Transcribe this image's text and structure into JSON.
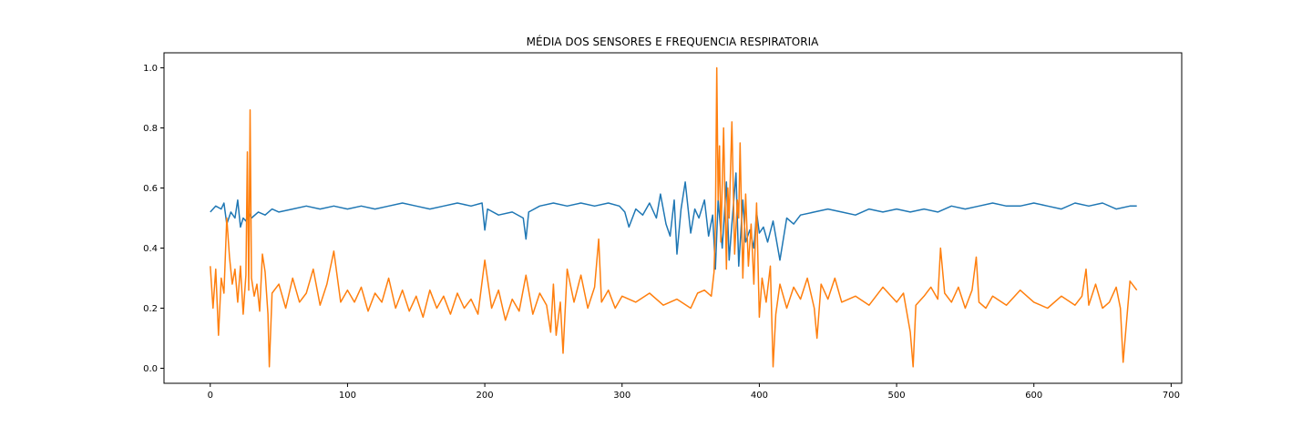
{
  "chart_data": {
    "type": "line",
    "title": "MÉDIA DOS SENSORES E FREQUENCIA RESPIRATORIA",
    "xlabel": "",
    "ylabel": "",
    "xlim": [
      -33.7,
      707.7
    ],
    "ylim": [
      -0.05,
      1.05
    ],
    "xticks": [
      0,
      100,
      200,
      300,
      400,
      500,
      600,
      700
    ],
    "yticks": [
      0.0,
      0.2,
      0.4,
      0.6,
      0.8,
      1.0
    ],
    "xtick_labels": [
      "0",
      "100",
      "200",
      "300",
      "400",
      "500",
      "600",
      "700"
    ],
    "ytick_labels": [
      "0.0",
      "0.2",
      "0.4",
      "0.6",
      "0.8",
      "1.0"
    ],
    "grid": false,
    "legend": "none",
    "series": [
      {
        "color": "#1f77b4",
        "x": [
          0,
          4,
          8,
          10,
          12,
          15,
          18,
          20,
          22,
          24,
          26,
          28,
          30,
          35,
          40,
          45,
          50,
          60,
          70,
          80,
          90,
          100,
          110,
          120,
          130,
          140,
          150,
          160,
          170,
          180,
          190,
          198,
          200,
          202,
          210,
          220,
          228,
          230,
          232,
          240,
          250,
          260,
          270,
          280,
          290,
          298,
          302,
          305,
          310,
          315,
          320,
          325,
          328,
          332,
          335,
          338,
          340,
          343,
          346,
          350,
          353,
          356,
          360,
          363,
          366,
          368,
          370,
          373,
          376,
          378,
          380,
          383,
          385,
          388,
          390,
          393,
          396,
          398,
          400,
          403,
          406,
          410,
          415,
          420,
          425,
          430,
          440,
          450,
          460,
          470,
          480,
          490,
          500,
          510,
          520,
          530,
          540,
          550,
          560,
          570,
          580,
          590,
          600,
          610,
          620,
          630,
          640,
          650,
          660,
          670,
          675
        ],
        "y": [
          0.52,
          0.54,
          0.53,
          0.55,
          0.48,
          0.52,
          0.5,
          0.56,
          0.47,
          0.5,
          0.49,
          0.52,
          0.5,
          0.52,
          0.51,
          0.53,
          0.52,
          0.53,
          0.54,
          0.53,
          0.54,
          0.53,
          0.54,
          0.53,
          0.54,
          0.55,
          0.54,
          0.53,
          0.54,
          0.55,
          0.54,
          0.55,
          0.46,
          0.53,
          0.51,
          0.52,
          0.5,
          0.43,
          0.52,
          0.54,
          0.55,
          0.54,
          0.55,
          0.54,
          0.55,
          0.54,
          0.52,
          0.47,
          0.53,
          0.51,
          0.55,
          0.5,
          0.58,
          0.48,
          0.44,
          0.56,
          0.38,
          0.53,
          0.62,
          0.45,
          0.53,
          0.5,
          0.56,
          0.44,
          0.51,
          0.33,
          0.56,
          0.4,
          0.62,
          0.36,
          0.48,
          0.65,
          0.34,
          0.56,
          0.42,
          0.46,
          0.4,
          0.52,
          0.45,
          0.47,
          0.42,
          0.49,
          0.36,
          0.5,
          0.48,
          0.51,
          0.52,
          0.53,
          0.52,
          0.51,
          0.53,
          0.52,
          0.53,
          0.52,
          0.53,
          0.52,
          0.54,
          0.53,
          0.54,
          0.55,
          0.54,
          0.54,
          0.55,
          0.54,
          0.53,
          0.55,
          0.54,
          0.55,
          0.53,
          0.54,
          0.54
        ]
      },
      {
        "color": "#ff7f0e",
        "x": [
          0,
          2,
          4,
          6,
          8,
          10,
          12,
          14,
          16,
          18,
          20,
          22,
          24,
          26,
          27,
          28,
          29,
          30,
          32,
          34,
          36,
          38,
          40,
          42,
          43,
          45,
          50,
          55,
          60,
          65,
          70,
          75,
          80,
          85,
          90,
          95,
          100,
          105,
          110,
          115,
          120,
          125,
          130,
          135,
          140,
          145,
          150,
          155,
          160,
          165,
          170,
          175,
          180,
          185,
          190,
          195,
          200,
          205,
          210,
          215,
          220,
          225,
          230,
          235,
          240,
          245,
          248,
          250,
          252,
          255,
          257,
          260,
          265,
          270,
          275,
          280,
          283,
          285,
          290,
          295,
          300,
          310,
          320,
          330,
          340,
          350,
          355,
          360,
          365,
          367,
          368,
          369,
          370,
          371,
          372,
          374,
          376,
          377,
          378,
          380,
          382,
          384,
          385,
          386,
          388,
          390,
          392,
          394,
          396,
          398,
          400,
          402,
          405,
          408,
          410,
          412,
          415,
          420,
          425,
          430,
          435,
          440,
          442,
          445,
          450,
          455,
          460,
          470,
          480,
          490,
          500,
          505,
          510,
          512,
          514,
          520,
          525,
          530,
          532,
          535,
          540,
          545,
          550,
          555,
          558,
          560,
          565,
          570,
          580,
          590,
          600,
          610,
          620,
          630,
          635,
          638,
          640,
          645,
          650,
          655,
          660,
          663,
          665,
          670,
          675
        ],
        "y": [
          0.34,
          0.2,
          0.33,
          0.11,
          0.3,
          0.25,
          0.5,
          0.37,
          0.28,
          0.33,
          0.22,
          0.34,
          0.18,
          0.31,
          0.72,
          0.26,
          0.86,
          0.3,
          0.24,
          0.28,
          0.19,
          0.38,
          0.32,
          0.18,
          0.005,
          0.25,
          0.28,
          0.2,
          0.3,
          0.22,
          0.25,
          0.33,
          0.21,
          0.28,
          0.39,
          0.22,
          0.26,
          0.22,
          0.27,
          0.19,
          0.25,
          0.22,
          0.3,
          0.2,
          0.26,
          0.19,
          0.24,
          0.17,
          0.26,
          0.2,
          0.24,
          0.18,
          0.25,
          0.2,
          0.23,
          0.18,
          0.36,
          0.2,
          0.26,
          0.16,
          0.23,
          0.19,
          0.31,
          0.18,
          0.25,
          0.21,
          0.12,
          0.28,
          0.11,
          0.22,
          0.05,
          0.33,
          0.22,
          0.31,
          0.2,
          0.27,
          0.43,
          0.22,
          0.26,
          0.2,
          0.24,
          0.22,
          0.25,
          0.21,
          0.23,
          0.2,
          0.25,
          0.26,
          0.24,
          0.32,
          0.48,
          1.0,
          0.56,
          0.74,
          0.42,
          0.8,
          0.33,
          0.6,
          0.5,
          0.82,
          0.38,
          0.56,
          0.5,
          0.75,
          0.3,
          0.58,
          0.34,
          0.48,
          0.28,
          0.55,
          0.17,
          0.3,
          0.22,
          0.34,
          0.005,
          0.18,
          0.28,
          0.2,
          0.27,
          0.23,
          0.3,
          0.2,
          0.1,
          0.28,
          0.23,
          0.3,
          0.22,
          0.24,
          0.21,
          0.27,
          0.22,
          0.25,
          0.12,
          0.005,
          0.21,
          0.24,
          0.27,
          0.23,
          0.4,
          0.25,
          0.22,
          0.27,
          0.2,
          0.26,
          0.37,
          0.22,
          0.2,
          0.24,
          0.21,
          0.26,
          0.22,
          0.2,
          0.24,
          0.21,
          0.24,
          0.33,
          0.21,
          0.28,
          0.2,
          0.22,
          0.27,
          0.2,
          0.02,
          0.29,
          0.26
        ]
      }
    ]
  }
}
